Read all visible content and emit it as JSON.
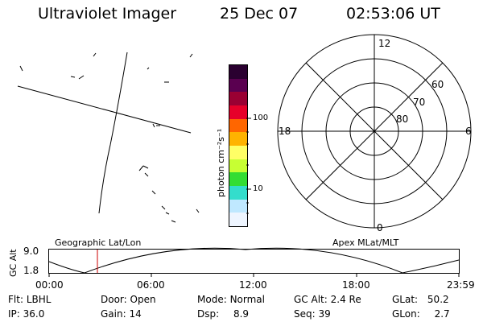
{
  "header": {
    "instrument": "Ultraviolet Imager",
    "date": "25 Dec 07",
    "time": "02:53:06 UT"
  },
  "colorbar": {
    "label": "photon cm⁻²s⁻¹",
    "tick_labels": [
      "100",
      "10"
    ],
    "colors": [
      "#2a0030",
      "#5a0050",
      "#9a0033",
      "#e6002a",
      "#ff6600",
      "#ffb300",
      "#ffff66",
      "#c7ff33",
      "#33dd33",
      "#33ddcc",
      "#bfe8ff",
      "#eef5ff"
    ]
  },
  "polar_plot": {
    "labels": {
      "top": "12",
      "left": "18",
      "right": "6",
      "bottom": "0"
    },
    "latitude_labels": [
      "60",
      "70",
      "80"
    ]
  },
  "orbit_plot": {
    "left_title": "Geographic Lat/Lon",
    "right_title": "Apex MLat/MLT",
    "y_axis_label": "GC Alt",
    "y_ticks": [
      "9.0",
      "1.8"
    ],
    "x_ticks": [
      "00:00",
      "06:00",
      "12:00",
      "18:00",
      "23:59"
    ],
    "current_time_marker": "02:53",
    "marker_color": "#cc0000"
  },
  "info": {
    "row1": [
      {
        "label": "Flt:",
        "value": "LBHL"
      },
      {
        "label": "Door:",
        "value": "Open"
      },
      {
        "label": "Mode:",
        "value": "Normal"
      },
      {
        "label": "GC Alt:",
        "value": "2.4 Re"
      },
      {
        "label": "GLat:",
        "value": "50.2"
      }
    ],
    "row2": [
      {
        "label": "IP:",
        "value": "36.0"
      },
      {
        "label": "Gain:",
        "value": "14"
      },
      {
        "label": "Dsp:",
        "value": "8.9"
      },
      {
        "label": "Seq:",
        "value": "39"
      },
      {
        "label": "GLon:",
        "value": "2.7"
      }
    ]
  }
}
